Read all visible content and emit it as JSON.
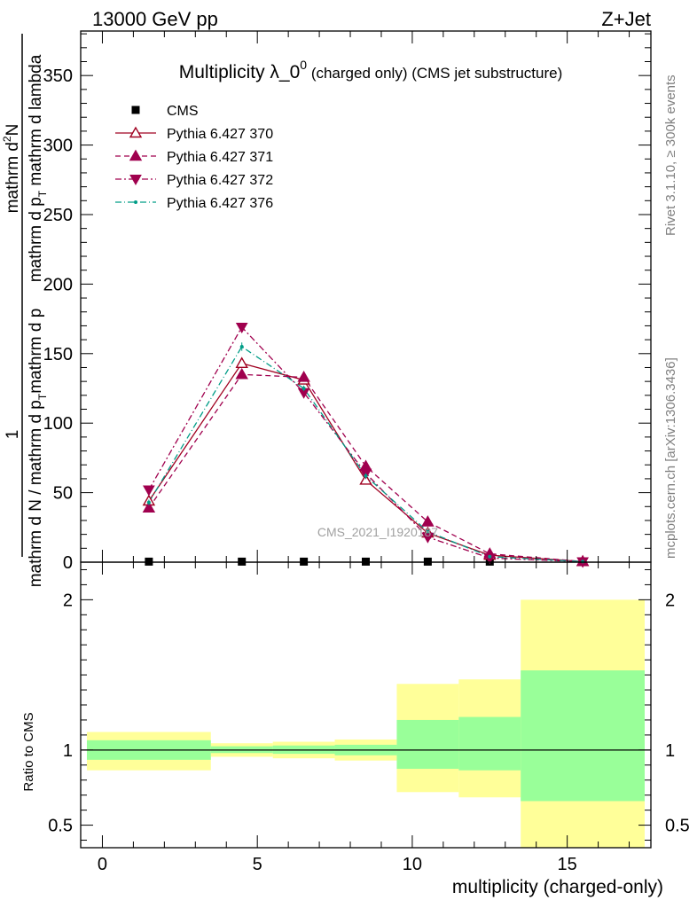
{
  "header": {
    "left": "13000 GeV pp",
    "right": "Z+Jet"
  },
  "watermark": "CMS_2021_I1920187",
  "side_labels": {
    "rivet": "Rivet 3.1.10, ≥ 300k events",
    "mcplots": "mcplots.cern.ch [arXiv:1306.3436]"
  },
  "colors": {
    "data": "#000000",
    "pythia370": "#a00020",
    "pythia371": "#a0004e",
    "pythia372": "#a0004e",
    "pythia376": "#009d87",
    "band_inner": "#99ff99",
    "band_outer": "#ffff99"
  },
  "chart_data": [
    {
      "type": "line",
      "title": "Multiplicity λ_0",
      "title_sup": "0",
      "title_suffix": " (charged only) (CMS jet substructure)",
      "ylabel_parts": {
        "n1": "1",
        "d1": "mathrm d N / mathrm d p",
        "d1_sub": "T",
        "d1_tail": "mathrm d p",
        "n2": "mathrm d",
        "n2_sup": "2",
        "n2_tail": "N",
        "d2": "mathrm d p",
        "d2_sub": "T",
        "d2_tail": " mathrm d lambda"
      },
      "xlim": [
        -0.7,
        17.7
      ],
      "ylim": [
        0,
        382
      ],
      "yticks": [
        0,
        50,
        100,
        150,
        200,
        250,
        300,
        350
      ],
      "x": [
        1.5,
        4.5,
        6.5,
        8.5,
        10.5,
        12.5,
        15.5
      ],
      "series": [
        {
          "name": "CMS",
          "style": "data",
          "values": [
            0.4,
            0.4,
            0.4,
            0.4,
            0.4,
            0.4,
            0.4
          ]
        },
        {
          "name": "Pythia 6.427 370",
          "style": "solid-open-triangle-up",
          "values": [
            44,
            143,
            131,
            59,
            21,
            5,
            0.5
          ],
          "errors": [
            2,
            2,
            2,
            2,
            1,
            0.5,
            0.2
          ]
        },
        {
          "name": "Pythia 6.427 371",
          "style": "dashed-filled-triangle-up",
          "values": [
            39,
            135,
            133,
            69,
            29,
            6,
            0.5
          ],
          "errors": [
            2,
            2,
            2,
            2,
            1,
            0.5,
            0.2
          ]
        },
        {
          "name": "Pythia 6.427 372",
          "style": "dashdot-filled-triangle-down",
          "values": [
            52,
            169,
            122,
            64,
            18,
            3,
            0.3
          ],
          "errors": [
            2,
            2,
            2,
            2,
            1,
            0.5,
            0.2
          ]
        },
        {
          "name": "Pythia 6.427 376",
          "style": "dashdot-dot",
          "values": [
            43,
            155,
            125,
            62,
            22,
            4,
            0.4
          ],
          "errors": [
            2,
            3,
            2,
            2,
            1,
            0.5,
            0.2
          ]
        }
      ]
    },
    {
      "type": "area",
      "xlabel": "multiplicity (charged-only)",
      "ylabel": "Ratio to CMS",
      "xlim": [
        -0.7,
        17.7
      ],
      "ylim": [
        0.35,
        2.25
      ],
      "xticks": [
        0,
        5,
        10,
        15
      ],
      "yticks": [
        0.5,
        1,
        2
      ],
      "reference": 1,
      "bins": [
        {
          "x_low": -0.5,
          "x_high": 3.5,
          "inner": [
            0.935,
            1.065
          ],
          "outer": [
            0.865,
            1.12
          ]
        },
        {
          "x_low": 3.5,
          "x_high": 5.5,
          "inner": [
            0.98,
            1.025
          ],
          "outer": [
            0.955,
            1.045
          ]
        },
        {
          "x_low": 5.5,
          "x_high": 7.5,
          "inner": [
            0.975,
            1.03
          ],
          "outer": [
            0.945,
            1.055
          ]
        },
        {
          "x_low": 7.5,
          "x_high": 9.5,
          "inner": [
            0.965,
            1.035
          ],
          "outer": [
            0.93,
            1.07
          ]
        },
        {
          "x_low": 9.5,
          "x_high": 11.5,
          "inner": [
            0.875,
            1.2
          ],
          "outer": [
            0.72,
            1.44
          ]
        },
        {
          "x_low": 11.5,
          "x_high": 13.5,
          "inner": [
            0.865,
            1.22
          ],
          "outer": [
            0.685,
            1.47
          ]
        },
        {
          "x_low": 13.5,
          "x_high": 17.5,
          "inner": [
            0.66,
            1.53
          ],
          "outer": [
            0.35,
            2.0
          ]
        }
      ]
    }
  ]
}
